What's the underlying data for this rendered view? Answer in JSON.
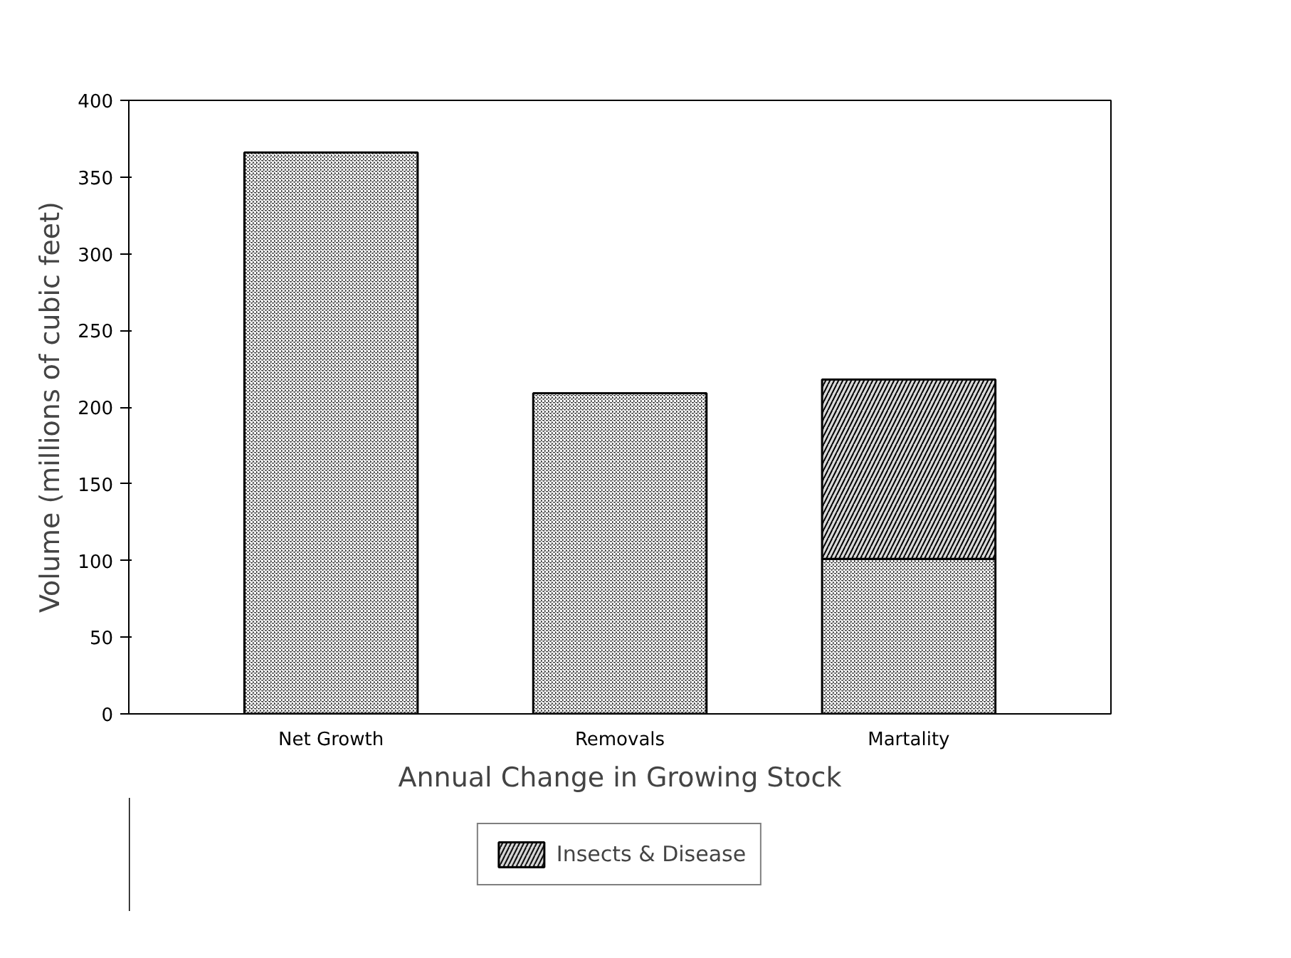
{
  "chart_data": {
    "type": "bar",
    "stacked": true,
    "categories": [
      "Net Growth",
      "Removals",
      "Martality"
    ],
    "xlabel": "Annual Change in Growing Stock",
    "ylabel": "Volume (millions of cubic feet)",
    "series": [
      {
        "color": "#2b2b2b",
        "values": [
          366,
          209,
          101
        ]
      },
      {
        "name": "Insects & Disease",
        "color": "#d9d9d9",
        "values": [
          null,
          null,
          117
        ]
      }
    ],
    "ylim": [
      0,
      400
    ],
    "yticks": [
      0,
      50,
      100,
      150,
      200,
      250,
      300,
      350,
      400
    ],
    "grid": false,
    "legend": "bottom"
  }
}
